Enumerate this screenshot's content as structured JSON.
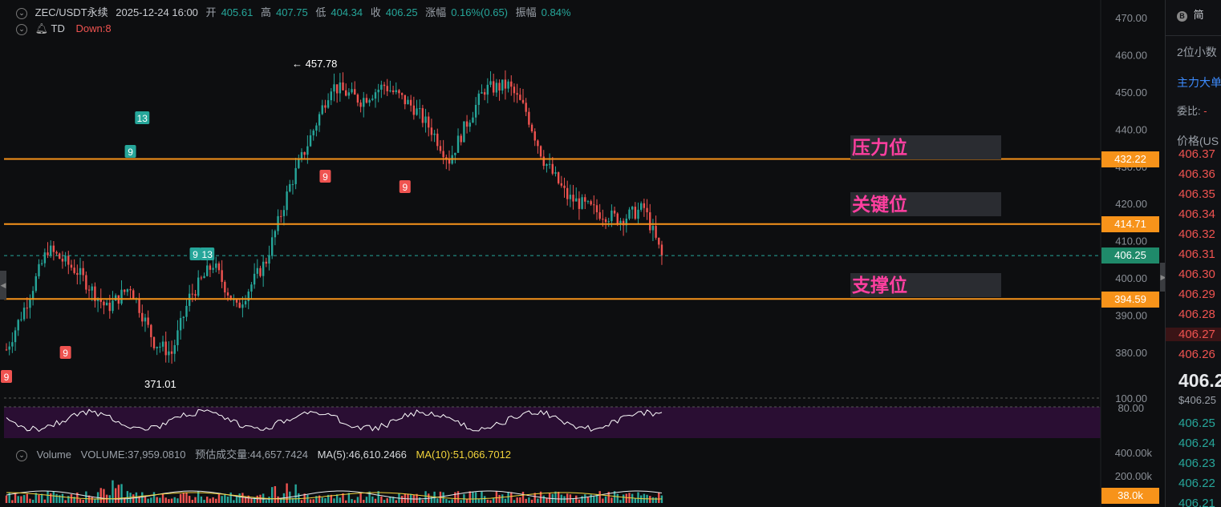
{
  "header": {
    "symbol": "ZEC/USDT永续",
    "datetime": "2025-12-24 16:00",
    "open_label": "开",
    "open": "405.61",
    "high_label": "高",
    "high": "407.75",
    "low_label": "低",
    "low": "404.34",
    "close_label": "收",
    "close": "406.25",
    "change_label": "涨幅",
    "change": "0.16%(0.65)",
    "amplitude_label": "振幅",
    "amplitude": "0.84%"
  },
  "indicator": {
    "name": "TD",
    "value": "Down:8"
  },
  "levels": {
    "resistance": {
      "label": "压力位",
      "price": "432.22"
    },
    "key": {
      "label": "关键位",
      "price": "414.71"
    },
    "support": {
      "label": "支撑位",
      "price": "394.59"
    },
    "current": {
      "price": "406.25"
    }
  },
  "volume_header": {
    "name": "Volume",
    "volume": "VOLUME:37,959.0810",
    "estimated": "预估成交量:44,657.7424",
    "ma5": "MA(5):46,610.2466",
    "ma10": "MA(10):51,066.7012"
  },
  "volume_axis": {
    "top": "400.00k",
    "mid": "200.00k",
    "current": "38.0k"
  },
  "rsi_axis": {
    "top": "100.00",
    "mid": "80.00"
  },
  "right_panel": {
    "btn": "简",
    "decimals": "2位小数",
    "main_order": "主力大单",
    "ratio": "委比:",
    "ratio_val": "-",
    "price_header": "价格(US",
    "ask_prices": [
      "406.37",
      "406.36",
      "406.35",
      "406.34",
      "406.32",
      "406.31",
      "406.30",
      "406.29",
      "406.28",
      "406.27",
      "406.26"
    ],
    "last_price": "406.2",
    "last_usd": "$406.25",
    "bid_prices": [
      "406.25",
      "406.24",
      "406.23",
      "406.22",
      "406.21"
    ]
  },
  "colors": {
    "up": "#26a69a",
    "down": "#ef5350",
    "level": "#f7931a",
    "label": "#ff3fa0",
    "rsi_bg": "#2a0e33"
  },
  "chart_data": {
    "type": "candlestick",
    "yaxis_ticks": [
      470,
      460,
      450,
      440,
      430,
      420,
      410,
      400,
      390,
      380
    ],
    "ylim": [
      371,
      474
    ],
    "hlines": [
      432.22,
      414.71,
      394.59
    ],
    "current_price": 406.25,
    "high_annotation": "← 457.78",
    "low_annotation": "371.01",
    "td_markers": [
      {
        "text": "9",
        "color": "#ef5350",
        "idx": 0,
        "pos": "below"
      },
      {
        "text": "9",
        "color": "#ef5350",
        "idx": 20,
        "pos": "below"
      },
      {
        "text": "9",
        "color": "#26a69a",
        "idx": 42,
        "pos": "above"
      },
      {
        "text": "13",
        "color": "#26a69a",
        "idx": 46,
        "pos": "above"
      },
      {
        "text": "9",
        "color": "#26a69a",
        "idx": 64,
        "pos": "above"
      },
      {
        "text": "13",
        "color": "#26a69a",
        "idx": 68,
        "pos": "above"
      },
      {
        "text": "9",
        "color": "#ef5350",
        "idx": 108,
        "pos": "below"
      },
      {
        "text": "9",
        "color": "#ef5350",
        "idx": 135,
        "pos": "below"
      }
    ]
  }
}
